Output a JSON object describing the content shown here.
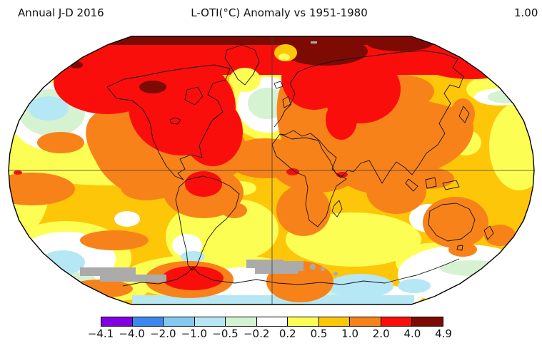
{
  "chart_data": {
    "type": "heatmap",
    "subtype": "global-temperature-anomaly-map",
    "period_label": "Annual J-D 2016",
    "title": "L-OTI(°C) Anomaly vs 1951-1980",
    "global_mean_value": "1.00",
    "units": "°C",
    "baseline_period": "1951-1980",
    "projection": "Robinson",
    "colorbar": {
      "orientation": "horizontal",
      "tick_labels": [
        "−4.1",
        "−4.0",
        "−2.0",
        "−1.0",
        "−0.5",
        "−0.2",
        "0.2",
        "0.5",
        "1.0",
        "2.0",
        "4.0",
        "4.9"
      ],
      "bin_edges": [
        -4.1,
        -4.0,
        -2.0,
        -1.0,
        -0.5,
        -0.2,
        0.2,
        0.5,
        1.0,
        2.0,
        4.0,
        4.9
      ],
      "segment_colors": [
        "#8000e0",
        "#3c87f0",
        "#86c9f0",
        "#b5e7f5",
        "#d5f2d1",
        "#ffffff",
        "#fdfe54",
        "#fdc608",
        "#f8821a",
        "#fa0e0c",
        "#7d0b04"
      ],
      "missing_data_color": "#ababab",
      "outline_color": "#000000"
    },
    "map_style": {
      "graticule_color": "#3a3a3a",
      "coastline_color": "#141414",
      "boundary_color": "#000000"
    },
    "notable_features": [
      {
        "region": "Arctic cap (80-90N)",
        "anomaly_band": "4.0 to 4.9"
      },
      {
        "region": "High northern latitudes: Alaska, northern Canada, Barents/Kara seas, western Siberia",
        "anomaly_band": "2.0 to 4.0"
      },
      {
        "region": "Most continents and mid-latitude oceans",
        "anomaly_band": "0.5 to 2.0"
      },
      {
        "region": "Eastern Brazil / Amazon",
        "anomaly_band": "2.0 to 4.0"
      },
      {
        "region": "North Atlantic cold blob southeast of Greenland",
        "anomaly_band": "-0.5 to -0.2"
      },
      {
        "region": "Northeast Pacific and South Pacific patches",
        "anomaly_band": "-1.0 to -0.5"
      },
      {
        "region": "West Antarctica / Antarctic Peninsula",
        "anomaly_band": "2.0 to 4.0"
      },
      {
        "region": "Antarctic coastal waters and Ross Sea",
        "anomaly_band": "-1.0 to -0.2"
      },
      {
        "region": "Southern Ocean bands near 60S",
        "anomaly_band": "missing data (gray)"
      }
    ]
  }
}
